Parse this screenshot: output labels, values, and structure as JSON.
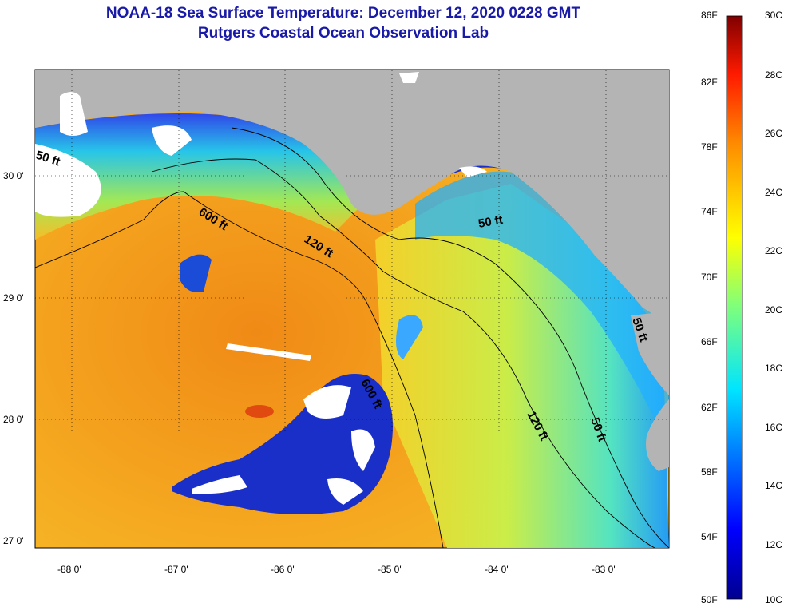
{
  "title": "NOAA-18 Sea Surface Temperature:  December 12, 2020 0228 GMT",
  "subtitle": "Rutgers Coastal Ocean Observation Lab",
  "lat_labels": [
    "30 0'",
    "29 0'",
    "28 0'",
    "27 0'"
  ],
  "lon_labels": [
    "-88 0'",
    "-87 0'",
    "-86 0'",
    "-85 0'",
    "-84 0'",
    "-83 0'"
  ],
  "contours": {
    "c50a": "50 ft",
    "c600a": "600 ft",
    "c120a": "120 ft",
    "c50b": "50 ft",
    "c50c": "50 ft",
    "c600b": "600 ft",
    "c120b": "120 ft",
    "c50d": "50 ft"
  },
  "colorbar": {
    "f_labels": [
      "86F",
      "82F",
      "78F",
      "74F",
      "70F",
      "66F",
      "62F",
      "58F",
      "54F",
      "50F"
    ],
    "c_labels": [
      "30C",
      "28C",
      "26C",
      "24C",
      "22C",
      "20C",
      "18C",
      "16C",
      "14C",
      "12C",
      "10C"
    ]
  },
  "colors": {
    "title": "#1a1aa8",
    "land": "#b4b4b4",
    "cloud": "#ffffff",
    "warm": "#f29a18",
    "cool": "#1a2fc8"
  }
}
